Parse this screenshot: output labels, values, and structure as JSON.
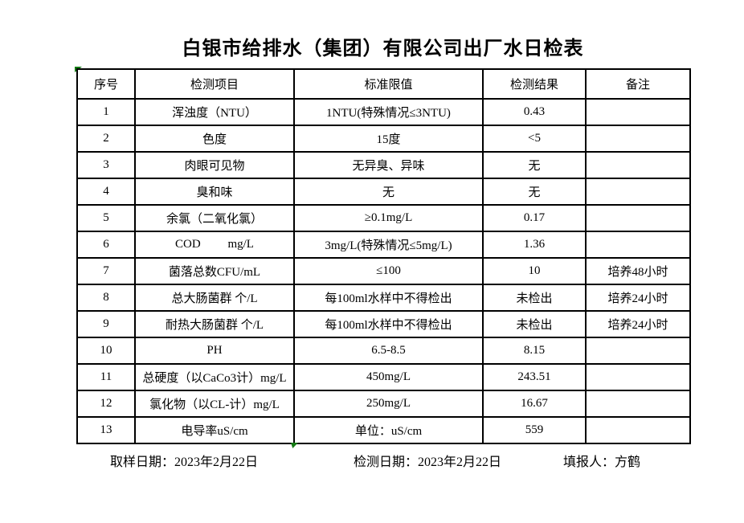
{
  "title": "白银市给排水（集团）有限公司出厂水日检表",
  "table": {
    "columns": [
      "序号",
      "检测项目",
      "标准限值",
      "检测结果",
      "备注"
    ],
    "rows": [
      [
        "1",
        "浑浊度（NTU）",
        "1NTU(特殊情况≤3NTU)",
        "0.43",
        ""
      ],
      [
        "2",
        "色度",
        "15度",
        "<5",
        ""
      ],
      [
        "3",
        "肉眼可见物",
        "无异臭、异味",
        "无",
        ""
      ],
      [
        "4",
        "臭和味",
        "无",
        "无",
        ""
      ],
      [
        "5",
        "余氯（二氧化氯）",
        "≥0.1mg/L",
        "0.17",
        ""
      ],
      [
        "6",
        "COD         mg/L",
        "3mg/L(特殊情况≤5mg/L)",
        "1.36",
        ""
      ],
      [
        "7",
        "菌落总数CFU/mL",
        "≤100",
        "10",
        "培养48小时"
      ],
      [
        "8",
        "总大肠菌群 个/L",
        "每100ml水样中不得检出",
        "未检出",
        "培养24小时"
      ],
      [
        "9",
        "耐热大肠菌群 个/L",
        "每100ml水样中不得检出",
        "未检出",
        "培养24小时"
      ],
      [
        "10",
        "PH",
        "6.5-8.5",
        "8.15",
        ""
      ],
      [
        "11",
        "总硬度（以CaCo3计）mg/L",
        "450mg/L",
        "243.51",
        ""
      ],
      [
        "12",
        "氯化物（以CL-计）mg/L",
        "250mg/L",
        "16.67",
        ""
      ],
      [
        "13",
        "电导率uS/cm",
        "单位：uS/cm",
        "559",
        ""
      ]
    ]
  },
  "footer": {
    "sampling_date": "取样日期：2023年2月22日",
    "test_date": "检测日期：2023年2月22日",
    "reporter": "填报人：方鹤"
  },
  "colors": {
    "background": "#ffffff",
    "grid": "#000000",
    "text": "#000000",
    "marker_green": "#147a14"
  }
}
